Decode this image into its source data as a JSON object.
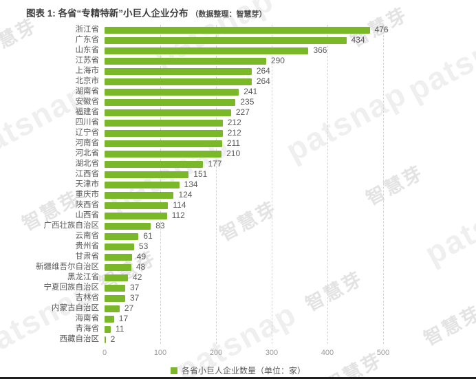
{
  "title": {
    "main": "图表 1: 各省“专精特新”小巨人企业分布",
    "note": "（数据整理：智慧芽）"
  },
  "watermark": {
    "brand": "patsnap",
    "cn": "智慧芽"
  },
  "colors": {
    "bar": "#7ab82a",
    "grid": "#d4d4d4",
    "label_text": "#595959",
    "tick_text": "#9b9b9b",
    "title_text": "#3d3d3d",
    "watermark_brand": "#efefef",
    "watermark_cn": "#e3e3e3",
    "bottom_strip": "#1f1f1f"
  },
  "chart_data": {
    "type": "bar",
    "orientation": "horizontal",
    "title": "图表 1: 各省“专精特新”小巨人企业分布",
    "source_note": "（数据整理：智慧芽）",
    "categories": [
      "浙江省",
      "广东省",
      "山东省",
      "江苏省",
      "上海市",
      "北京市",
      "湖南省",
      "安徽省",
      "福建省",
      "四川省",
      "辽宁省",
      "河南省",
      "河北省",
      "湖北省",
      "江西省",
      "天津市",
      "重庆市",
      "陕西省",
      "山西省",
      "广西壮族自治区",
      "云南省",
      "贵州省",
      "甘肃省",
      "新疆维吾尔自治区",
      "黑龙江省",
      "宁夏回族自治区",
      "吉林省",
      "内蒙古自治区",
      "海南省",
      "青海省",
      "西藏自治区"
    ],
    "values": [
      476,
      434,
      366,
      290,
      264,
      264,
      241,
      235,
      227,
      212,
      212,
      211,
      210,
      177,
      151,
      134,
      124,
      114,
      112,
      83,
      61,
      53,
      49,
      48,
      42,
      37,
      37,
      27,
      17,
      11,
      2
    ],
    "xlim": [
      0,
      500
    ],
    "xticks": [
      0,
      100,
      200,
      300,
      400,
      500
    ],
    "grid": "vertical-dashed",
    "value_labels": true,
    "legend": {
      "label": "各省小巨人企业数量（单位：家）",
      "position": "bottom-center"
    }
  }
}
